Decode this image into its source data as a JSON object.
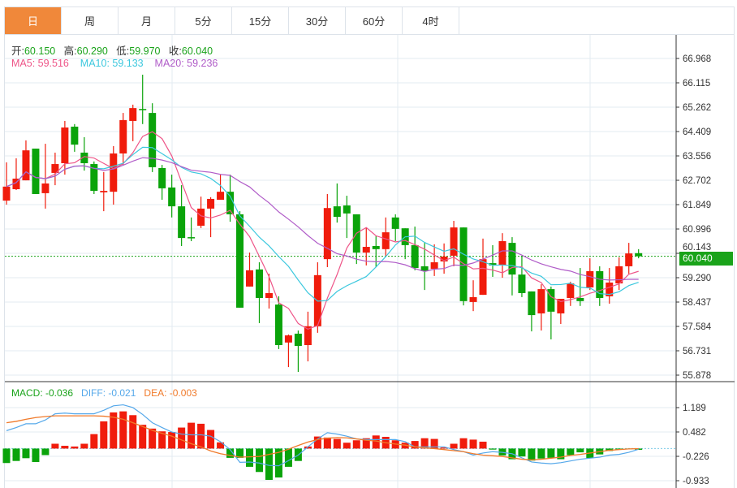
{
  "tabs": [
    {
      "label": "日",
      "active": true
    },
    {
      "label": "周"
    },
    {
      "label": "月"
    },
    {
      "label": "5分"
    },
    {
      "label": "15分"
    },
    {
      "label": "30分"
    },
    {
      "label": "60分"
    },
    {
      "label": "4时"
    }
  ],
  "ohlc_header": {
    "open_label": "开:",
    "open": "60.150",
    "high_label": "高:",
    "high": "60.290",
    "low_label": "低:",
    "low": "59.970",
    "close_label": "收:",
    "close": "60.040"
  },
  "ma_header": {
    "ma5": "MA5: 59.516",
    "ma10": "MA10: 59.133",
    "ma20": "MA20: 59.236"
  },
  "macd_header": {
    "macd": "MACD: -0.036",
    "diff": "DIFF: -0.021",
    "dea": "DEA: -0.003"
  },
  "current_price": "60.040",
  "colors": {
    "up": "#f01c0c",
    "down": "#0aa30a",
    "ma5": "#ee5588",
    "ma10": "#3cc8de",
    "ma20": "#b05cc8",
    "diff": "#55a8ea",
    "dea": "#f07a2a",
    "accent": "#f0883a"
  },
  "chart_data": [
    {
      "type": "candlestick",
      "title": "Daily",
      "yticks": [
        "66.968",
        "66.115",
        "65.262",
        "64.409",
        "63.556",
        "62.702",
        "61.849",
        "60.996",
        "60.143",
        "59.290",
        "58.437",
        "57.584",
        "56.731",
        "55.878"
      ],
      "ylim": [
        55.878,
        66.968
      ],
      "candles": [
        [
          61.99,
          62.48,
          63.33,
          61.85
        ],
        [
          62.39,
          62.76,
          63.47,
          62.36
        ],
        [
          62.7,
          63.75,
          64.1,
          62.7
        ],
        [
          63.81,
          62.22,
          63.81,
          62.22
        ],
        [
          62.25,
          62.59,
          63.98,
          61.71
        ],
        [
          62.96,
          63.27,
          63.67,
          62.53
        ],
        [
          63.3,
          64.55,
          64.78,
          62.9
        ],
        [
          64.58,
          63.95,
          64.67,
          63.7
        ],
        [
          63.67,
          63.3,
          64.21,
          63.04
        ],
        [
          63.27,
          62.33,
          63.36,
          62.22
        ],
        [
          62.28,
          62.33,
          62.99,
          61.62
        ],
        [
          62.3,
          63.64,
          63.9,
          61.85
        ],
        [
          63.64,
          64.81,
          65.06,
          63.24
        ],
        [
          64.78,
          65.23,
          65.35,
          64.07
        ],
        [
          65.2,
          65.17,
          66.4,
          64.67
        ],
        [
          65.06,
          63.16,
          65.4,
          62.99
        ],
        [
          63.13,
          62.42,
          63.24,
          62.02
        ],
        [
          62.45,
          61.79,
          62.9,
          61.4
        ],
        [
          61.79,
          60.68,
          62.53,
          60.4
        ],
        [
          60.71,
          60.68,
          61.4,
          60.57
        ],
        [
          61.11,
          61.71,
          62.13,
          61.03
        ],
        [
          61.71,
          62.05,
          62.11,
          60.71
        ],
        [
          62.02,
          62.3,
          62.9,
          62.02
        ],
        [
          62.3,
          61.51,
          62.9,
          61.25
        ],
        [
          61.51,
          58.24,
          61.62,
          58.24
        ],
        [
          58.98,
          59.55,
          60.17,
          58.98
        ],
        [
          59.58,
          58.58,
          59.83,
          57.7
        ],
        [
          58.58,
          58.75,
          59.43,
          58.21
        ],
        [
          58.35,
          56.93,
          58.64,
          56.79
        ],
        [
          57.02,
          57.27,
          57.3,
          56.16
        ],
        [
          57.33,
          56.9,
          57.44,
          55.99
        ],
        [
          56.93,
          57.59,
          58.1,
          56.36
        ],
        [
          57.59,
          59.38,
          59.83,
          57.36
        ],
        [
          59.94,
          61.73,
          62.22,
          59.66
        ],
        [
          61.79,
          61.42,
          62.59,
          61.22
        ],
        [
          61.82,
          61.54,
          62.16,
          60.68
        ],
        [
          61.51,
          60.17,
          61.51,
          59.77
        ],
        [
          60.17,
          60.37,
          61.05,
          59.72
        ],
        [
          60.4,
          60.29,
          60.74,
          59.66
        ],
        [
          60.29,
          60.88,
          61.4,
          60.06
        ],
        [
          61.4,
          61.0,
          61.51,
          60.57
        ],
        [
          61.02,
          60.43,
          61.02,
          59.94
        ],
        [
          60.43,
          59.63,
          61.08,
          59.55
        ],
        [
          59.69,
          59.52,
          60.51,
          58.86
        ],
        [
          59.6,
          59.83,
          60.46,
          59.35
        ],
        [
          59.86,
          60.03,
          60.49,
          59.43
        ],
        [
          60.06,
          61.05,
          61.28,
          59.69
        ],
        [
          61.05,
          58.47,
          61.05,
          58.32
        ],
        [
          58.44,
          58.61,
          59.2,
          58.12
        ],
        [
          58.69,
          59.94,
          60.66,
          58.69
        ],
        [
          59.8,
          59.72,
          60.43,
          59.32
        ],
        [
          59.72,
          60.57,
          60.85,
          59.29
        ],
        [
          60.51,
          59.4,
          60.71,
          58.67
        ],
        [
          59.4,
          58.75,
          60.06,
          58.61
        ],
        [
          58.81,
          57.98,
          58.81,
          57.41
        ],
        [
          58.04,
          58.89,
          59.06,
          57.44
        ],
        [
          58.89,
          58.1,
          58.98,
          57.13
        ],
        [
          58.04,
          58.55,
          58.55,
          57.67
        ],
        [
          58.58,
          59.09,
          59.15,
          58.3
        ],
        [
          58.58,
          58.47,
          59.63,
          58.3
        ],
        [
          58.95,
          59.52,
          59.97,
          58.86
        ],
        [
          59.52,
          58.58,
          59.69,
          58.3
        ],
        [
          58.64,
          59.12,
          59.63,
          58.38
        ],
        [
          59.09,
          59.69,
          60.0,
          58.86
        ],
        [
          59.69,
          60.14,
          60.51,
          59.43
        ],
        [
          60.15,
          60.04,
          60.29,
          59.97
        ]
      ],
      "candle_format": [
        "open",
        "close",
        "high",
        "low"
      ],
      "series": [
        "MA5",
        "MA10",
        "MA20"
      ]
    },
    {
      "type": "bar+line",
      "title": "MACD",
      "yticks": [
        "1.189",
        "0.482",
        "-0.226",
        "-0.933"
      ],
      "ylim": [
        -0.933,
        1.189
      ],
      "macd": [
        -0.42,
        -0.36,
        -0.28,
        -0.39,
        -0.19,
        0.14,
        0.08,
        0.06,
        0.14,
        0.42,
        0.79,
        1.05,
        1.08,
        0.97,
        0.69,
        0.58,
        0.5,
        0.48,
        0.61,
        0.75,
        0.72,
        0.54,
        0.18,
        -0.27,
        -0.27,
        -0.53,
        -0.68,
        -0.91,
        -0.84,
        -0.53,
        -0.36,
        0.06,
        0.35,
        0.32,
        0.28,
        0.17,
        0.24,
        0.3,
        0.38,
        0.34,
        0.24,
        0.17,
        0.22,
        0.3,
        0.28,
        0.03,
        0.14,
        0.3,
        0.26,
        0.2,
        -0.03,
        -0.2,
        -0.31,
        -0.23,
        -0.35,
        -0.29,
        -0.27,
        -0.31,
        -0.19,
        -0.11,
        -0.28,
        -0.17,
        -0.07,
        -0.03,
        -0.02,
        -0.036
      ],
      "diff": [
        0.52,
        0.61,
        0.72,
        0.72,
        0.83,
        1.01,
        1.03,
        1.01,
        1.01,
        1.01,
        1.11,
        1.24,
        1.27,
        1.19,
        0.99,
        0.75,
        0.61,
        0.48,
        0.42,
        0.4,
        0.4,
        0.36,
        0.2,
        -0.03,
        -0.4,
        -0.39,
        -0.42,
        -0.49,
        -0.5,
        -0.35,
        -0.19,
        0.05,
        0.28,
        0.46,
        0.42,
        0.36,
        0.28,
        0.26,
        0.26,
        0.26,
        0.26,
        0.2,
        0.05,
        0.05,
        0.05,
        0.05,
        -0.03,
        -0.09,
        -0.19,
        -0.13,
        -0.09,
        -0.11,
        -0.15,
        -0.27,
        -0.39,
        -0.42,
        -0.44,
        -0.41,
        -0.36,
        -0.31,
        -0.28,
        -0.25,
        -0.19,
        -0.17,
        -0.11,
        -0.021
      ],
      "dea": [
        0.75,
        0.79,
        0.85,
        0.9,
        0.93,
        0.95,
        0.95,
        0.95,
        0.95,
        0.95,
        0.94,
        0.91,
        0.85,
        0.75,
        0.64,
        0.53,
        0.44,
        0.36,
        0.25,
        0.14,
        0.05,
        -0.07,
        -0.15,
        -0.2,
        -0.25,
        -0.24,
        -0.23,
        -0.17,
        -0.11,
        -0.02,
        0.09,
        0.19,
        0.26,
        0.3,
        0.32,
        0.31,
        0.28,
        0.24,
        0.22,
        0.17,
        0.13,
        0.1,
        0.05,
        0.02,
        0.0,
        -0.03,
        -0.06,
        -0.09,
        -0.15,
        -0.19,
        -0.21,
        -0.23,
        -0.27,
        -0.31,
        -0.33,
        -0.31,
        -0.28,
        -0.25,
        -0.2,
        -0.17,
        -0.13,
        -0.09,
        -0.05,
        -0.03,
        -0.01,
        -0.003
      ]
    }
  ]
}
